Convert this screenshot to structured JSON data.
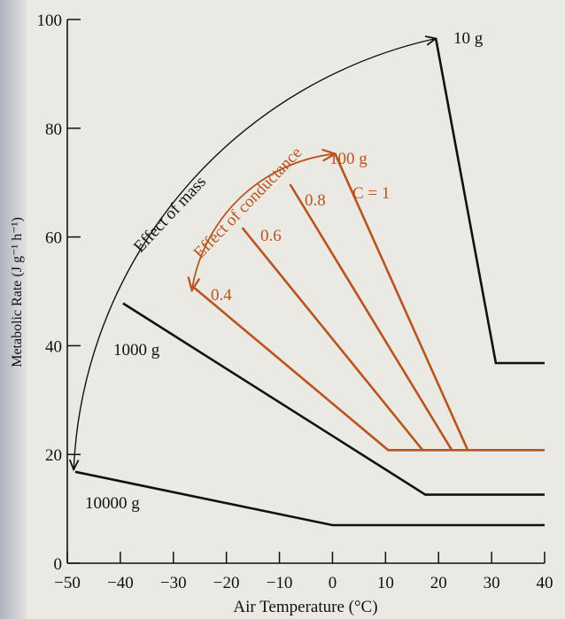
{
  "chart_data": {
    "type": "line",
    "title": "",
    "xlabel": "Air Temperature (°C)",
    "ylabel": "Metabolic Rate (J g⁻¹ h⁻¹)",
    "xlim": [
      -50,
      40
    ],
    "ylim": [
      0,
      100
    ],
    "xticks": [
      -50,
      -40,
      -30,
      -20,
      -10,
      0,
      10,
      20,
      30,
      40
    ],
    "yticks": [
      0,
      20,
      40,
      60,
      80,
      100
    ],
    "xtick_labels": [
      "−50",
      "−40",
      "−30",
      "−20",
      "−10",
      "0",
      "10",
      "20",
      "30",
      "40"
    ],
    "ytick_labels": [
      "0",
      "20",
      "40",
      "60",
      "80",
      "100"
    ],
    "grid": false,
    "legend": "none",
    "colors": {
      "mass_series": "#111111",
      "conductance_series": "#b9541e"
    },
    "series": [
      {
        "name": "10 g",
        "group": "mass",
        "points": [
          [
            19.5,
            96.5
          ],
          [
            30.8,
            36.8
          ],
          [
            40,
            36.8
          ]
        ]
      },
      {
        "name": "1000 g",
        "group": "mass",
        "points": [
          [
            -39.5,
            47.8
          ],
          [
            17.5,
            12.6
          ],
          [
            40,
            12.6
          ]
        ]
      },
      {
        "name": "10000 g",
        "group": "mass",
        "points": [
          [
            -48.5,
            16.8
          ],
          [
            0,
            7
          ],
          [
            40,
            7
          ]
        ]
      },
      {
        "name": "0.4",
        "group": "conductance",
        "points": [
          [
            -26,
            50.6
          ],
          [
            10.5,
            20.8
          ],
          [
            40,
            20.8
          ]
        ]
      },
      {
        "name": "0.6",
        "group": "conductance",
        "points": [
          [
            -17,
            61.7
          ],
          [
            17,
            20.8
          ]
        ]
      },
      {
        "name": "0.8",
        "group": "conductance",
        "points": [
          [
            -8,
            69.7
          ],
          [
            22.5,
            20.8
          ]
        ]
      },
      {
        "name": "C = 1",
        "group": "conductance",
        "points": [
          [
            0.5,
            75.3
          ],
          [
            25.5,
            20.8
          ]
        ]
      }
    ],
    "annotations": {
      "label_10g": "10 g",
      "label_100g": "100 g",
      "label_1000g": "1000 g",
      "label_10000g": "10000 g",
      "label_c1": "C = 1",
      "label_08": "0.8",
      "label_06": "0.6",
      "label_04": "0.4",
      "effect_of_mass": "Effect of mass",
      "effect_of_conductance": "Effect of conductance"
    },
    "arcs": [
      {
        "name": "effect-of-mass-arc",
        "from": [
          -48.8,
          17.2
        ],
        "to": [
          19.5,
          96.5
        ],
        "arrows": "both"
      },
      {
        "name": "effect-of-conductance-arc",
        "from": [
          -26.5,
          50.2
        ],
        "to": [
          0.5,
          75.3
        ],
        "arrows": "both"
      }
    ]
  }
}
